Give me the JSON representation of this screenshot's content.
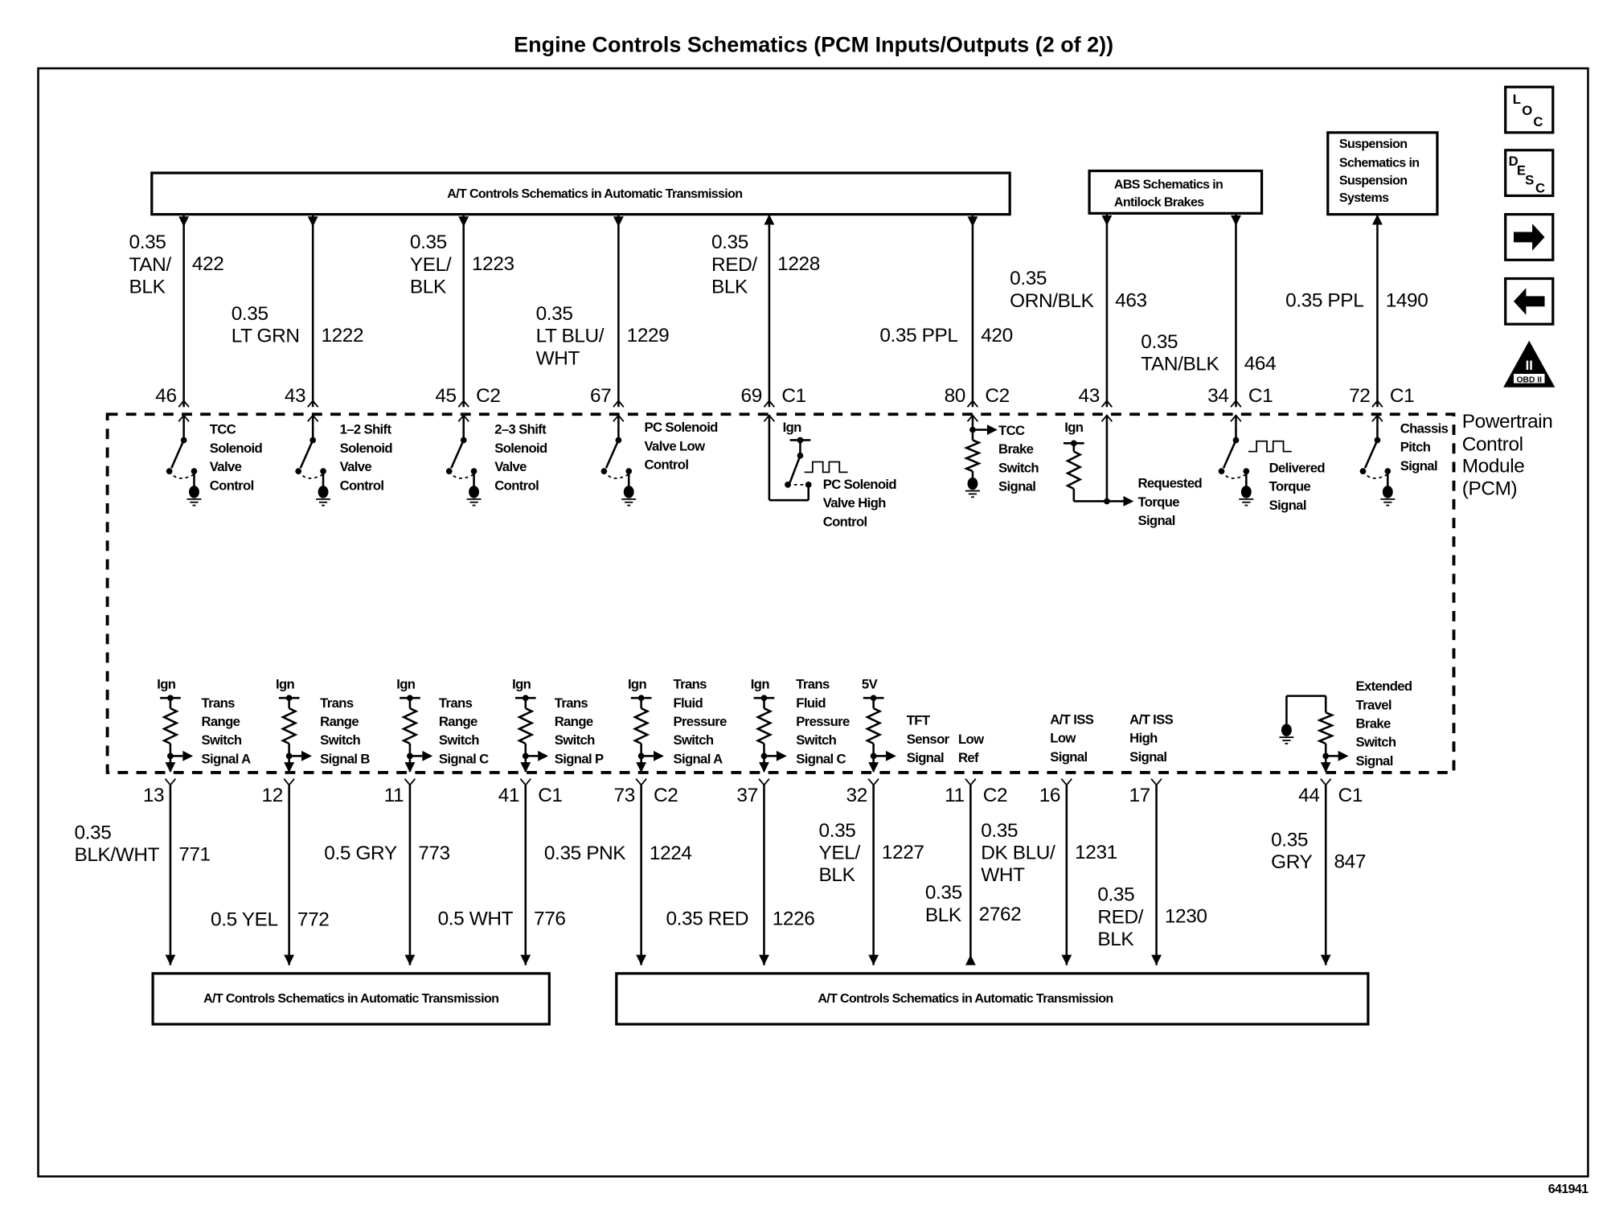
{
  "title": "Engine Controls Schematics (PCM Inputs/Outputs (2 of 2))",
  "figure_id": "641941",
  "nav_icons": {
    "loc": [
      "L",
      "O",
      "C"
    ],
    "desc": [
      "D",
      "E",
      "S",
      "C"
    ],
    "next": "arrow-right",
    "prev": "arrow-left",
    "obd": "OBD II",
    "obd_numeral": "II"
  },
  "boxes": {
    "top_at": "A/T Controls Schematics in Automatic Transmission",
    "top_abs": [
      "ABS Schematics in",
      "Antilock Brakes"
    ],
    "top_susp": [
      "Suspension",
      "Schematics in",
      "Suspension",
      "Systems"
    ],
    "bottom_left": "A/T Controls Schematics in Automatic Transmission",
    "bottom_right": "A/T Controls Schematics in Automatic Transmission"
  },
  "pcm_label": [
    "Powertrain",
    "Control",
    "Module",
    "(PCM)"
  ],
  "top_circuits": [
    {
      "pin": "46",
      "connector": "",
      "wire": [
        "0.35",
        "TAN/",
        "BLK"
      ],
      "circuit": "422",
      "direction": "in",
      "source": "",
      "signal": [
        "TCC",
        "Solenoid",
        "Valve",
        "Control"
      ]
    },
    {
      "pin": "43",
      "connector": "",
      "wire": [
        "0.35",
        "LT GRN"
      ],
      "circuit": "1222",
      "direction": "in",
      "source": "",
      "signal": [
        "1–2 Shift",
        "Solenoid",
        "Valve",
        "Control"
      ]
    },
    {
      "pin": "45",
      "connector": "C2",
      "wire": [
        "0.35",
        "YEL/",
        "BLK"
      ],
      "circuit": "1223",
      "direction": "in",
      "source": "",
      "signal": [
        "2–3 Shift",
        "Solenoid",
        "Valve",
        "Control"
      ]
    },
    {
      "pin": "67",
      "connector": "",
      "wire": [
        "0.35",
        "LT BLU/",
        "WHT"
      ],
      "circuit": "1229",
      "direction": "in",
      "source": "",
      "signal": [
        "PC Solenoid",
        "Valve Low",
        "Control"
      ]
    },
    {
      "pin": "69",
      "connector": "C1",
      "wire": [
        "0.35",
        "RED/",
        "BLK"
      ],
      "circuit": "1228",
      "direction": "out",
      "source": "Ign",
      "signal": [
        "PC Solenoid",
        "Valve High",
        "Control"
      ]
    },
    {
      "pin": "80",
      "connector": "C2",
      "wire": [
        "0.35 PPL"
      ],
      "circuit": "420",
      "direction": "in",
      "source": "",
      "signal": [
        "TCC",
        "Brake",
        "Switch",
        "Signal"
      ]
    },
    {
      "pin": "43",
      "connector": "",
      "wire": [
        "0.35",
        "ORN/BLK"
      ],
      "circuit": "463",
      "direction": "in",
      "source": "Ign",
      "signal": [
        "Requested",
        "Torque",
        "Signal"
      ]
    },
    {
      "pin": "34",
      "connector": "C1",
      "wire": [
        "0.35",
        "TAN/BLK"
      ],
      "circuit": "464",
      "direction": "in",
      "source": "",
      "signal": [
        "Delivered",
        "Torque",
        "Signal"
      ]
    },
    {
      "pin": "72",
      "connector": "C1",
      "wire": [
        "0.35 PPL"
      ],
      "circuit": "1490",
      "direction": "out",
      "source": "",
      "signal": [
        "Chassis",
        "Pitch",
        "Signal"
      ]
    }
  ],
  "bottom_circuits": [
    {
      "pin": "13",
      "connector": "",
      "wire": [
        "0.35",
        "BLK/WHT"
      ],
      "circuit": "771",
      "direction": "down",
      "source": "Ign",
      "signal": [
        "Trans",
        "Range",
        "Switch",
        "Signal A"
      ]
    },
    {
      "pin": "12",
      "connector": "",
      "wire": [
        "0.5 YEL"
      ],
      "circuit": "772",
      "direction": "down",
      "source": "Ign",
      "signal": [
        "Trans",
        "Range",
        "Switch",
        "Signal B"
      ]
    },
    {
      "pin": "11",
      "connector": "",
      "wire": [
        "0.5 GRY"
      ],
      "circuit": "773",
      "direction": "down",
      "source": "Ign",
      "signal": [
        "Trans",
        "Range",
        "Switch",
        "Signal C"
      ]
    },
    {
      "pin": "41",
      "connector": "C1",
      "wire": [
        "0.5 WHT"
      ],
      "circuit": "776",
      "direction": "down",
      "source": "Ign",
      "signal": [
        "Trans",
        "Range",
        "Switch",
        "Signal P"
      ]
    },
    {
      "pin": "73",
      "connector": "C2",
      "wire": [
        "0.35 PNK"
      ],
      "circuit": "1224",
      "direction": "down",
      "source": "Ign",
      "signal": [
        "Trans",
        "Fluid",
        "Pressure",
        "Switch",
        "Signal A"
      ]
    },
    {
      "pin": "37",
      "connector": "",
      "wire": [
        "0.35 RED"
      ],
      "circuit": "1226",
      "direction": "down",
      "source": "Ign",
      "signal": [
        "Trans",
        "Fluid",
        "Pressure",
        "Switch",
        "Signal C"
      ]
    },
    {
      "pin": "32",
      "connector": "",
      "wire": [
        "0.35",
        "YEL/",
        "BLK"
      ],
      "circuit": "1227",
      "direction": "down",
      "source": "5V",
      "signal": [
        "TFT",
        "Sensor",
        "Signal"
      ]
    },
    {
      "pin": "11",
      "connector": "C2",
      "wire": [
        "0.35",
        "BLK"
      ],
      "circuit": "2762",
      "direction": "up",
      "source": "",
      "signal": [
        "Low",
        "Ref"
      ]
    },
    {
      "pin": "16",
      "connector": "",
      "wire": [
        "0.35",
        "DK BLU/",
        "WHT"
      ],
      "circuit": "1231",
      "direction": "down",
      "source": "",
      "signal": [
        "A/T ISS",
        "Low",
        "Signal"
      ]
    },
    {
      "pin": "17",
      "connector": "",
      "wire": [
        "0.35",
        "RED/",
        "BLK"
      ],
      "circuit": "1230",
      "direction": "down",
      "source": "",
      "signal": [
        "A/T ISS",
        "High",
        "Signal"
      ]
    },
    {
      "pin": "44",
      "connector": "C1",
      "wire": [
        "0.35",
        "GRY"
      ],
      "circuit": "847",
      "direction": "down",
      "source": "",
      "signal": [
        "Extended",
        "Travel",
        "Brake",
        "Switch",
        "Signal"
      ]
    }
  ]
}
